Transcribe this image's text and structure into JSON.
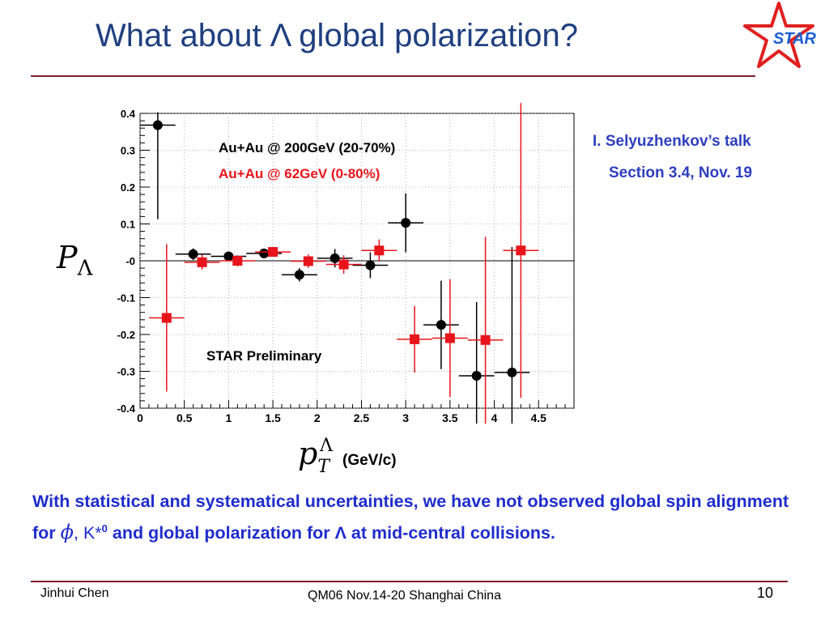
{
  "slide": {
    "title": "What about Λ global polarization?",
    "logo_text": "STAR",
    "reference_line1": "I. Selyuzhenkov’s talk",
    "reference_line2": "Section 3.4, Nov. 19",
    "conclusion_part1": "With statistical and systematical uncertainties, we have not observed global spin alignment for ",
    "conclusion_phi": "ϕ",
    "conclusion_part2": ", K*",
    "conclusion_sup": "0",
    "conclusion_part3": " and global polarization for Λ at mid-central collisions.",
    "footer_author": "Jinhui Chen",
    "footer_conference": "QM06 Nov.14-20 Shanghai China",
    "page_number": "10"
  },
  "axis_labels": {
    "y_symbol": "P",
    "y_sub": "Λ",
    "x_symbol": "p",
    "x_sub": "T",
    "x_sup": "Λ",
    "x_unit": "(GeV/c)"
  },
  "colors": {
    "title": "#1f3f7f",
    "rule": "#7a1f2a",
    "reference": "#2d3fbf",
    "conclusion": "#1f2dcc",
    "series_200": "#000000",
    "series_62": "#e8141b",
    "logo_star": "#e02020",
    "logo_text": "#1a5fd0"
  },
  "chart_data": {
    "type": "scatter",
    "xlim": [
      0,
      4.9
    ],
    "ylim": [
      -0.4,
      0.4
    ],
    "x_ticks": [
      "0",
      "0.5",
      "1",
      "1.5",
      "2",
      "2.5",
      "3",
      "3.5",
      "4",
      "4.5"
    ],
    "x_tick_values": [
      0,
      0.5,
      1,
      1.5,
      2,
      2.5,
      3,
      3.5,
      4,
      4.5
    ],
    "y_ticks": [
      "0.4",
      "0.3",
      "0.2",
      "0.1",
      "-0",
      "-0.1",
      "-0.2",
      "-0.3",
      "-0.4"
    ],
    "y_tick_values": [
      0.4,
      0.3,
      0.2,
      0.1,
      0,
      -0.1,
      -0.2,
      -0.3,
      -0.4
    ],
    "preliminary_label": "STAR Preliminary",
    "series": [
      {
        "name": "Au+Au @ 200GeV (20-70%)",
        "marker": "circle",
        "color": "#000000",
        "points": [
          {
            "x": 0.2,
            "y": 0.368,
            "xerr": 0.2,
            "yerr_up": 0.035,
            "yerr_down": 0.255
          },
          {
            "x": 0.6,
            "y": 0.018,
            "xerr": 0.2,
            "yerr_up": 0.016,
            "yerr_down": 0.016
          },
          {
            "x": 1.0,
            "y": 0.012,
            "xerr": 0.2,
            "yerr_up": 0.012,
            "yerr_down": 0.012
          },
          {
            "x": 1.4,
            "y": 0.02,
            "xerr": 0.2,
            "yerr_up": 0.012,
            "yerr_down": 0.012
          },
          {
            "x": 1.8,
            "y": -0.038,
            "xerr": 0.2,
            "yerr_up": 0.018,
            "yerr_down": 0.018
          },
          {
            "x": 2.2,
            "y": 0.007,
            "xerr": 0.2,
            "yerr_up": 0.025,
            "yerr_down": 0.025
          },
          {
            "x": 2.6,
            "y": -0.012,
            "xerr": 0.2,
            "yerr_up": 0.035,
            "yerr_down": 0.035
          },
          {
            "x": 3.0,
            "y": 0.103,
            "xerr": 0.2,
            "yerr_up": 0.08,
            "yerr_down": 0.08
          },
          {
            "x": 3.4,
            "y": -0.174,
            "xerr": 0.2,
            "yerr_up": 0.12,
            "yerr_down": 0.12
          },
          {
            "x": 3.8,
            "y": -0.312,
            "xerr": 0.2,
            "yerr_up": 0.2,
            "yerr_down": 0.2
          },
          {
            "x": 4.2,
            "y": -0.303,
            "xerr": 0.2,
            "yerr_up": 0.34,
            "yerr_down": 0.34
          }
        ]
      },
      {
        "name": "Au+Au @ 62GeV (0-80%)",
        "marker": "square",
        "color": "#e8141b",
        "points": [
          {
            "x": 0.3,
            "y": -0.155,
            "xerr": 0.2,
            "yerr_up": 0.2,
            "yerr_down": 0.2
          },
          {
            "x": 0.7,
            "y": -0.004,
            "xerr": 0.2,
            "yerr_up": 0.02,
            "yerr_down": 0.02
          },
          {
            "x": 1.1,
            "y": 0.0,
            "xerr": 0.2,
            "yerr_up": 0.015,
            "yerr_down": 0.015
          },
          {
            "x": 1.5,
            "y": 0.024,
            "xerr": 0.2,
            "yerr_up": 0.013,
            "yerr_down": 0.013
          },
          {
            "x": 1.9,
            "y": -0.001,
            "xerr": 0.2,
            "yerr_up": 0.018,
            "yerr_down": 0.018
          },
          {
            "x": 2.3,
            "y": -0.01,
            "xerr": 0.2,
            "yerr_up": 0.025,
            "yerr_down": 0.025
          },
          {
            "x": 2.7,
            "y": 0.028,
            "xerr": 0.2,
            "yerr_up": 0.03,
            "yerr_down": 0.03
          },
          {
            "x": 3.1,
            "y": -0.213,
            "xerr": 0.2,
            "yerr_up": 0.09,
            "yerr_down": 0.09
          },
          {
            "x": 3.5,
            "y": -0.21,
            "xerr": 0.2,
            "yerr_up": 0.16,
            "yerr_down": 0.16
          },
          {
            "x": 3.9,
            "y": -0.215,
            "xerr": 0.2,
            "yerr_up": 0.28,
            "yerr_down": 0.28
          },
          {
            "x": 4.3,
            "y": 0.028,
            "xerr": 0.2,
            "yerr_up": 0.4,
            "yerr_down": 0.4
          }
        ]
      }
    ]
  }
}
